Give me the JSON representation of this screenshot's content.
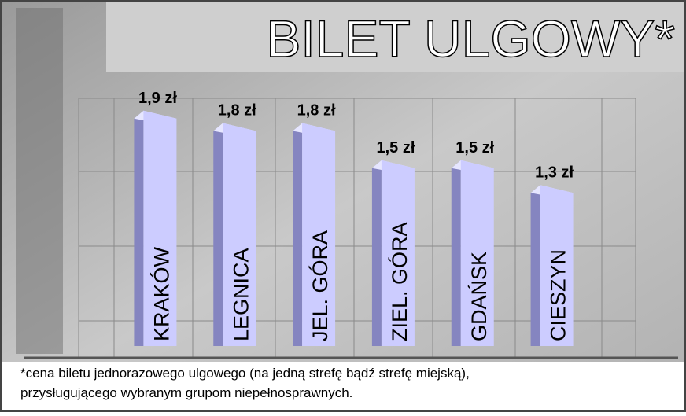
{
  "chart_data": {
    "type": "bar",
    "title": "BILET ULGOWY*",
    "categories": [
      "KRAKÓW",
      "LEGNICA",
      "JEL. GÓRA",
      "ZIEL. GÓRA",
      "GDAŃSK",
      "CIESZYN"
    ],
    "values": [
      1.9,
      1.8,
      1.8,
      1.5,
      1.5,
      1.3
    ],
    "value_labels": [
      "1,9 zł",
      "1,8 zł",
      "1,8 zł",
      "1,5 zł",
      "1,5 zł",
      "1,3 zł"
    ],
    "color": "#ccccff",
    "ylim": [
      0,
      2
    ],
    "grid": true,
    "annotations": [
      "*cena biletu jednorazowego ulgowego (na jedną strefę bądź strefę miejską),",
      "przysługującego wybranym grupom niepełnosprawnych."
    ]
  }
}
